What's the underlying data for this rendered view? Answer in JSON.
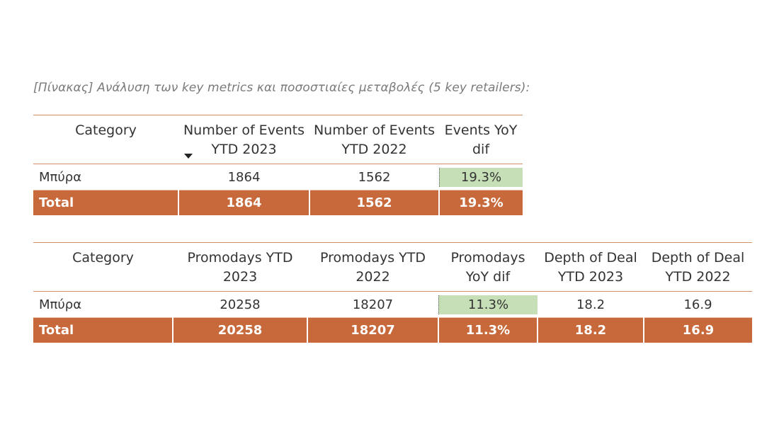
{
  "caption": "[Πίνακας] Ανάλυση των key metrics και ποσοστιαίες μεταβολές (5 key retailers):",
  "table1": {
    "headers": [
      "Category",
      "Number of Events YTD 2023",
      "Number of Events YTD 2022",
      "Events YoY dif"
    ],
    "row": [
      "Μπύρα",
      "1864",
      "1562",
      "19.3%"
    ],
    "total": [
      "Total",
      "1864",
      "1562",
      "19.3%"
    ],
    "sorted_column": "Number of Events YTD 2023"
  },
  "table2": {
    "headers": [
      "Category",
      "Promodays YTD 2023",
      "Promodays YTD 2022",
      "Promodays YoY dif",
      "Depth of Deal YTD 2023",
      "Depth of Deal YTD 2022"
    ],
    "row": [
      "Μπύρα",
      "20258",
      "18207",
      "11.3%",
      "18.2",
      "16.9"
    ],
    "total": [
      "Total",
      "20258",
      "18207",
      "11.3%",
      "18.2",
      "16.9"
    ]
  },
  "colors": {
    "total_row": "#c8693c",
    "highlight": "#c6dfb7",
    "header_rule": "#d0906a"
  }
}
